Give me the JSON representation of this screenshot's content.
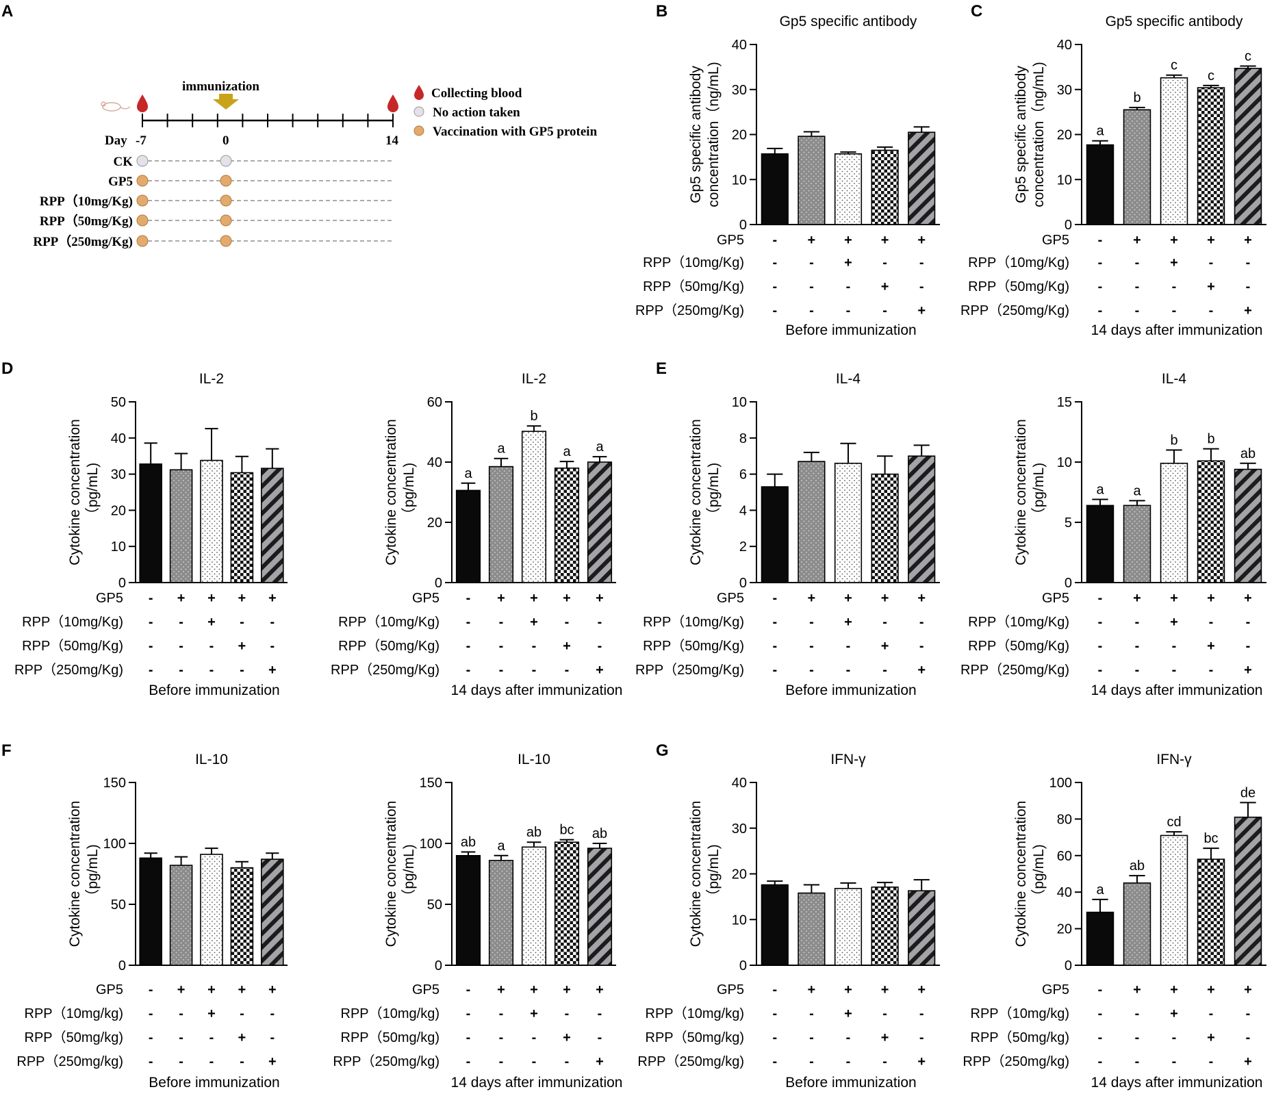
{
  "panel_letters": [
    "A",
    "B",
    "C",
    "D",
    "E",
    "F",
    "G"
  ],
  "schedule": {
    "immunization_label": "immunization",
    "day_prefix": "Day",
    "day_ticks": [
      "-7",
      "0",
      "14"
    ],
    "groups": [
      "CK",
      "GP5",
      "RPP（10mg/Kg)",
      "RPP（50mg/Kg)",
      "RPP（250mg/Kg)"
    ],
    "legend": [
      {
        "label": "Collecting blood",
        "icon": "blood-drop-icon",
        "color": "#c62828"
      },
      {
        "label": "No action taken",
        "icon": "gray-circle-icon",
        "color": "#e6e0e8"
      },
      {
        "label": "Vaccination with GP5 protein",
        "icon": "orange-circle-icon",
        "color": "#e3aa6e"
      }
    ],
    "arrow_color": "#c9a21a"
  },
  "treatment_table": {
    "row_gp5": "GP5",
    "sign_gp5": [
      "-",
      "+",
      "+",
      "+",
      "+"
    ],
    "sign_r10": [
      "-",
      "-",
      "+",
      "-",
      "-"
    ],
    "sign_r50": [
      "-",
      "-",
      "-",
      "+",
      "-"
    ],
    "sign_r250": [
      "-",
      "-",
      "-",
      "-",
      "+"
    ]
  },
  "chart_data": [
    {
      "id": "B",
      "type": "bar",
      "title": "Gp5 specific antibody",
      "ylabel": [
        "Gp5 specific antibody",
        "concentration（ng/mL)"
      ],
      "ylim": [
        0,
        40
      ],
      "yticks": [
        0,
        10,
        20,
        30,
        40
      ],
      "categories": [
        "CK",
        "GP5",
        "RPP 10",
        "RPP 50",
        "RPP 250"
      ],
      "values": [
        15.7,
        19.6,
        15.7,
        16.5,
        20.5
      ],
      "errors": [
        1.2,
        1.0,
        0.4,
        0.7,
        1.2
      ],
      "letters": [
        "",
        "",
        "",
        "",
        ""
      ],
      "row_labels": [
        "GP5",
        "RPP（10mg/Kg)",
        "RPP（50mg/Kg)",
        "RPP（250mg/Kg)"
      ],
      "caption": "Before immunization"
    },
    {
      "id": "C",
      "type": "bar",
      "title": "Gp5 specific antibody",
      "ylabel": [
        "Gp5 specific antibody",
        "concentration（ng/mL)"
      ],
      "ylim": [
        0,
        40
      ],
      "yticks": [
        0,
        10,
        20,
        30,
        40
      ],
      "categories": [
        "CK",
        "GP5",
        "RPP 10",
        "RPP 50",
        "RPP 250"
      ],
      "values": [
        17.7,
        25.5,
        32.6,
        30.4,
        34.7
      ],
      "errors": [
        0.9,
        0.5,
        0.6,
        0.5,
        0.5
      ],
      "letters": [
        "a",
        "b",
        "c",
        "c",
        "c"
      ],
      "row_labels": [
        "GP5",
        "RPP（10mg/Kg)",
        "RPP（50mg/Kg)",
        "RPP（250mg/Kg)"
      ],
      "caption": "14 days after immunization"
    },
    {
      "id": "D1",
      "type": "bar",
      "title": "IL-2",
      "ylabel": [
        "Cytokine concentration",
        "（pg/mL)"
      ],
      "ylim": [
        0,
        50
      ],
      "yticks": [
        0,
        10,
        20,
        30,
        40,
        50
      ],
      "categories": [
        "CK",
        "GP5",
        "RPP 10",
        "RPP 50",
        "RPP 250"
      ],
      "values": [
        32.8,
        31.2,
        33.8,
        30.4,
        31.6
      ],
      "errors": [
        5.8,
        4.5,
        8.8,
        4.5,
        5.4
      ],
      "letters": [
        "",
        "",
        "",
        "",
        ""
      ],
      "row_labels": [
        "GP5",
        "RPP（10mg/Kg)",
        "RPP（50mg/Kg)",
        "RPP（250mg/Kg)"
      ],
      "caption": "Before immunization"
    },
    {
      "id": "D2",
      "type": "bar",
      "title": "IL-2",
      "ylabel": [
        "Cytokine concentration",
        "（pg/mL)"
      ],
      "ylim": [
        0,
        60
      ],
      "yticks": [
        0,
        20,
        40,
        60
      ],
      "categories": [
        "CK",
        "GP5",
        "RPP 10",
        "RPP 50",
        "RPP 250"
      ],
      "values": [
        30.6,
        38.5,
        50.2,
        38.0,
        40.0
      ],
      "errors": [
        2.4,
        2.7,
        1.8,
        2.2,
        1.8
      ],
      "letters": [
        "a",
        "a",
        "b",
        "a",
        "a"
      ],
      "row_labels": [
        "GP5",
        "RPP（10mg/Kg)",
        "RPP（50mg/Kg)",
        "RPP（250mg/Kg)"
      ],
      "caption": "14 days after immunization"
    },
    {
      "id": "E1",
      "type": "bar",
      "title": "IL-4",
      "ylabel": [
        "Cytokine concentration",
        "（pg/mL)"
      ],
      "ylim": [
        0,
        10
      ],
      "yticks": [
        0,
        2,
        4,
        6,
        8,
        10
      ],
      "categories": [
        "CK",
        "GP5",
        "RPP 10",
        "RPP 50",
        "RPP 250"
      ],
      "values": [
        5.3,
        6.7,
        6.6,
        6.0,
        7.0
      ],
      "errors": [
        0.7,
        0.5,
        1.1,
        1.0,
        0.6
      ],
      "letters": [
        "",
        "",
        "",
        "",
        ""
      ],
      "row_labels": [
        "GP5",
        "RPP（10mg/Kg)",
        "RPP（50mg/Kg)",
        "RPP（250mg/Kg)"
      ],
      "caption": "Before immunization"
    },
    {
      "id": "E2",
      "type": "bar",
      "title": "IL-4",
      "ylabel": [
        "Cytokine concentration",
        "（pg/mL)"
      ],
      "ylim": [
        0,
        15
      ],
      "yticks": [
        0,
        5,
        10,
        15
      ],
      "categories": [
        "CK",
        "GP5",
        "RPP 10",
        "RPP 50",
        "RPP 250"
      ],
      "values": [
        6.4,
        6.4,
        9.9,
        10.1,
        9.4
      ],
      "errors": [
        0.5,
        0.4,
        1.1,
        1.0,
        0.5
      ],
      "letters": [
        "a",
        "a",
        "b",
        "b",
        "ab"
      ],
      "row_labels": [
        "GP5",
        "RPP（10mg/Kg)",
        "RPP（50mg/Kg)",
        "RPP（250mg/Kg)"
      ],
      "caption": "14 days after immunization"
    },
    {
      "id": "F1",
      "type": "bar",
      "title": "IL-10",
      "ylabel": [
        "Cytokine concentration",
        "（pg/mL)"
      ],
      "ylim": [
        0,
        150
      ],
      "yticks": [
        0,
        50,
        100,
        150
      ],
      "categories": [
        "CK",
        "GP5",
        "RPP 10",
        "RPP 50",
        "RPP 250"
      ],
      "values": [
        88,
        82,
        91,
        80,
        87
      ],
      "errors": [
        4,
        7,
        5,
        5,
        5
      ],
      "letters": [
        "",
        "",
        "",
        "",
        ""
      ],
      "row_labels": [
        "GP5",
        "RPP（10mg/kg)",
        "RPP（50mg/kg)",
        "RPP（250mg/kg)"
      ],
      "caption": "Before immunization"
    },
    {
      "id": "F2",
      "type": "bar",
      "title": "IL-10",
      "ylabel": [
        "Cytokine concentration",
        "（pg/mL)"
      ],
      "ylim": [
        0,
        150
      ],
      "yticks": [
        0,
        50,
        100,
        150
      ],
      "categories": [
        "CK",
        "GP5",
        "RPP 10",
        "RPP 50",
        "RPP 250"
      ],
      "values": [
        90,
        86,
        97,
        101,
        96
      ],
      "errors": [
        3,
        4,
        4,
        2,
        4
      ],
      "letters": [
        "ab",
        "a",
        "ab",
        "bc",
        "ab"
      ],
      "row_labels": [
        "GP5",
        "RPP（10mg/kg)",
        "RPP（50mg/kg)",
        "RPP（250mg/kg)"
      ],
      "caption": "14 days after immunization"
    },
    {
      "id": "G1",
      "type": "bar",
      "title": "IFN-γ",
      "ylabel": [
        "Cytokine concentration",
        "（pg/mL)"
      ],
      "ylim": [
        0,
        40
      ],
      "yticks": [
        0,
        10,
        20,
        30,
        40
      ],
      "categories": [
        "CK",
        "GP5",
        "RPP 10",
        "RPP 50",
        "RPP 250"
      ],
      "values": [
        17.6,
        15.8,
        16.8,
        17.1,
        16.3
      ],
      "errors": [
        0.8,
        1.8,
        1.2,
        1.0,
        2.4
      ],
      "letters": [
        "",
        "",
        "",
        "",
        ""
      ],
      "row_labels": [
        "GP5",
        "RPP（10mg/kg)",
        "RPP（50mg/kg)",
        "RPP（250mg/kg)"
      ],
      "caption": "Before immunization"
    },
    {
      "id": "G2",
      "type": "bar",
      "title": "IFN-γ",
      "ylabel": [
        "Cytokine concentration",
        "（pg/mL)"
      ],
      "ylim": [
        0,
        100
      ],
      "yticks": [
        0,
        20,
        40,
        60,
        80,
        100
      ],
      "categories": [
        "CK",
        "GP5",
        "RPP 10",
        "RPP 50",
        "RPP 250"
      ],
      "values": [
        29,
        45,
        71,
        58,
        81
      ],
      "errors": [
        7,
        4,
        2,
        6,
        8
      ],
      "letters": [
        "a",
        "ab",
        "cd",
        "bc",
        "de"
      ],
      "row_labels": [
        "GP5",
        "RPP（10mg/kg)",
        "RPP（50mg/kg)",
        "RPP（250mg/kg)"
      ],
      "caption": "14 days after immunization"
    }
  ]
}
